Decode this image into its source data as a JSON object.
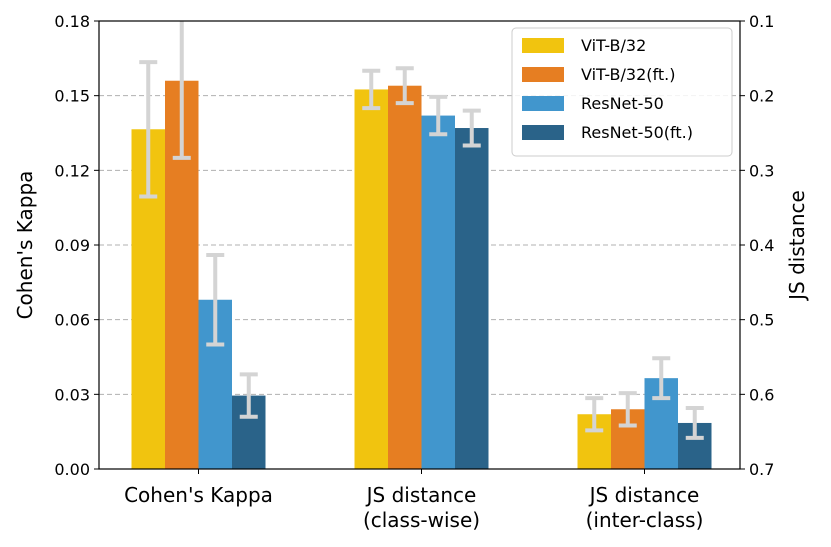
{
  "chart_data": {
    "type": "bar",
    "title": "",
    "categories": [
      "Cohen's Kappa",
      "JS distance\n(class-wise)",
      "JS distance\n(inter-class)"
    ],
    "ylabel_left": "Cohen's Kappa",
    "ylabel_right": "JS distance",
    "ylim_left": [
      0,
      0.18
    ],
    "yticks_left": [
      "0.00",
      "0.03",
      "0.06",
      "0.09",
      "0.12",
      "0.15",
      "0.18"
    ],
    "ylim_right": [
      0.7,
      0.1
    ],
    "yticks_right": [
      "0.1",
      "0.2",
      "0.3",
      "0.4",
      "0.5",
      "0.6",
      "0.7"
    ],
    "grid": true,
    "legend_position": "top-right",
    "series": [
      {
        "name": "ViT-B/32",
        "color": "#f1c40f",
        "values": [
          0.1365,
          0.1525,
          0.022
        ],
        "errors": [
          0.027,
          0.0075,
          0.0065
        ]
      },
      {
        "name": "ViT-B/32(ft.)",
        "color": "#e67e22",
        "values": [
          0.156,
          0.154,
          0.024
        ],
        "errors": [
          0.031,
          0.007,
          0.0065
        ]
      },
      {
        "name": "ResNet-50",
        "color": "#4196cd",
        "values": [
          0.068,
          0.142,
          0.0365
        ],
        "errors": [
          0.018,
          0.0075,
          0.008
        ]
      },
      {
        "name": "ResNet-50(ft.)",
        "color": "#2a6389",
        "values": [
          0.0295,
          0.137,
          0.0185
        ],
        "errors": [
          0.0085,
          0.007,
          0.006
        ]
      }
    ]
  }
}
